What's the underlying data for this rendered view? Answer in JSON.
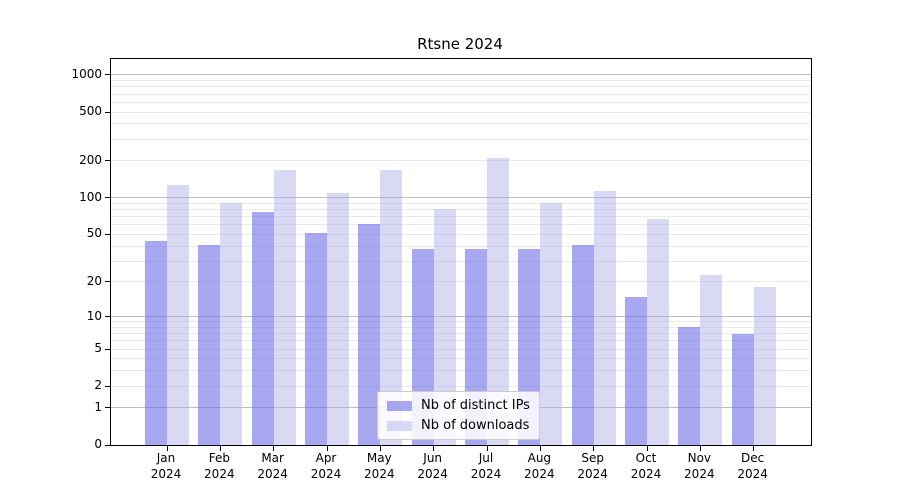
{
  "title": "Rtsne 2024",
  "chart_data": {
    "type": "bar",
    "title": "Rtsne 2024",
    "categories": [
      "Jan 2024",
      "Feb 2024",
      "Mar 2024",
      "Apr 2024",
      "May 2024",
      "Jun 2024",
      "Jul 2024",
      "Aug 2024",
      "Sep 2024",
      "Oct 2024",
      "Nov 2024",
      "Dec 2024"
    ],
    "months": [
      "Jan",
      "Feb",
      "Mar",
      "Apr",
      "May",
      "Jun",
      "Jul",
      "Aug",
      "Sep",
      "Oct",
      "Nov",
      "Dec"
    ],
    "year": "2024",
    "series": [
      {
        "name": "Nb of distinct IPs",
        "fill": "rgba(110,110,230,0.6)",
        "color_hex": "#a8a8f0",
        "values": [
          44,
          41,
          77,
          51,
          61,
          38,
          38,
          38,
          41,
          15,
          8,
          7
        ]
      },
      {
        "name": "Nb of downloads",
        "fill": "rgba(170,170,235,0.45)",
        "color_hex": "#d9d9f6",
        "values": [
          128,
          90,
          170,
          110,
          170,
          81,
          210,
          90,
          114,
          67,
          23,
          18
        ]
      }
    ],
    "xlabel": "",
    "ylabel": "",
    "y_scale": "log10(1+y)",
    "ylim": [
      0,
      1260
    ],
    "y_ticks": [
      0,
      1,
      2,
      5,
      10,
      20,
      50,
      100,
      200,
      500,
      1000
    ],
    "grid": {
      "major_values": [
        1,
        10,
        100,
        1000
      ],
      "minor_values": [
        2,
        3,
        4,
        5,
        6,
        7,
        8,
        9,
        20,
        30,
        40,
        50,
        60,
        70,
        80,
        90,
        200,
        300,
        400,
        500,
        600,
        700,
        800,
        900
      ],
      "major_color": "#bdbdbd",
      "minor_color": "#eaeaea"
    },
    "legend": {
      "position": "lower center",
      "items": [
        "Nb of distinct IPs",
        "Nb of downloads"
      ]
    }
  }
}
